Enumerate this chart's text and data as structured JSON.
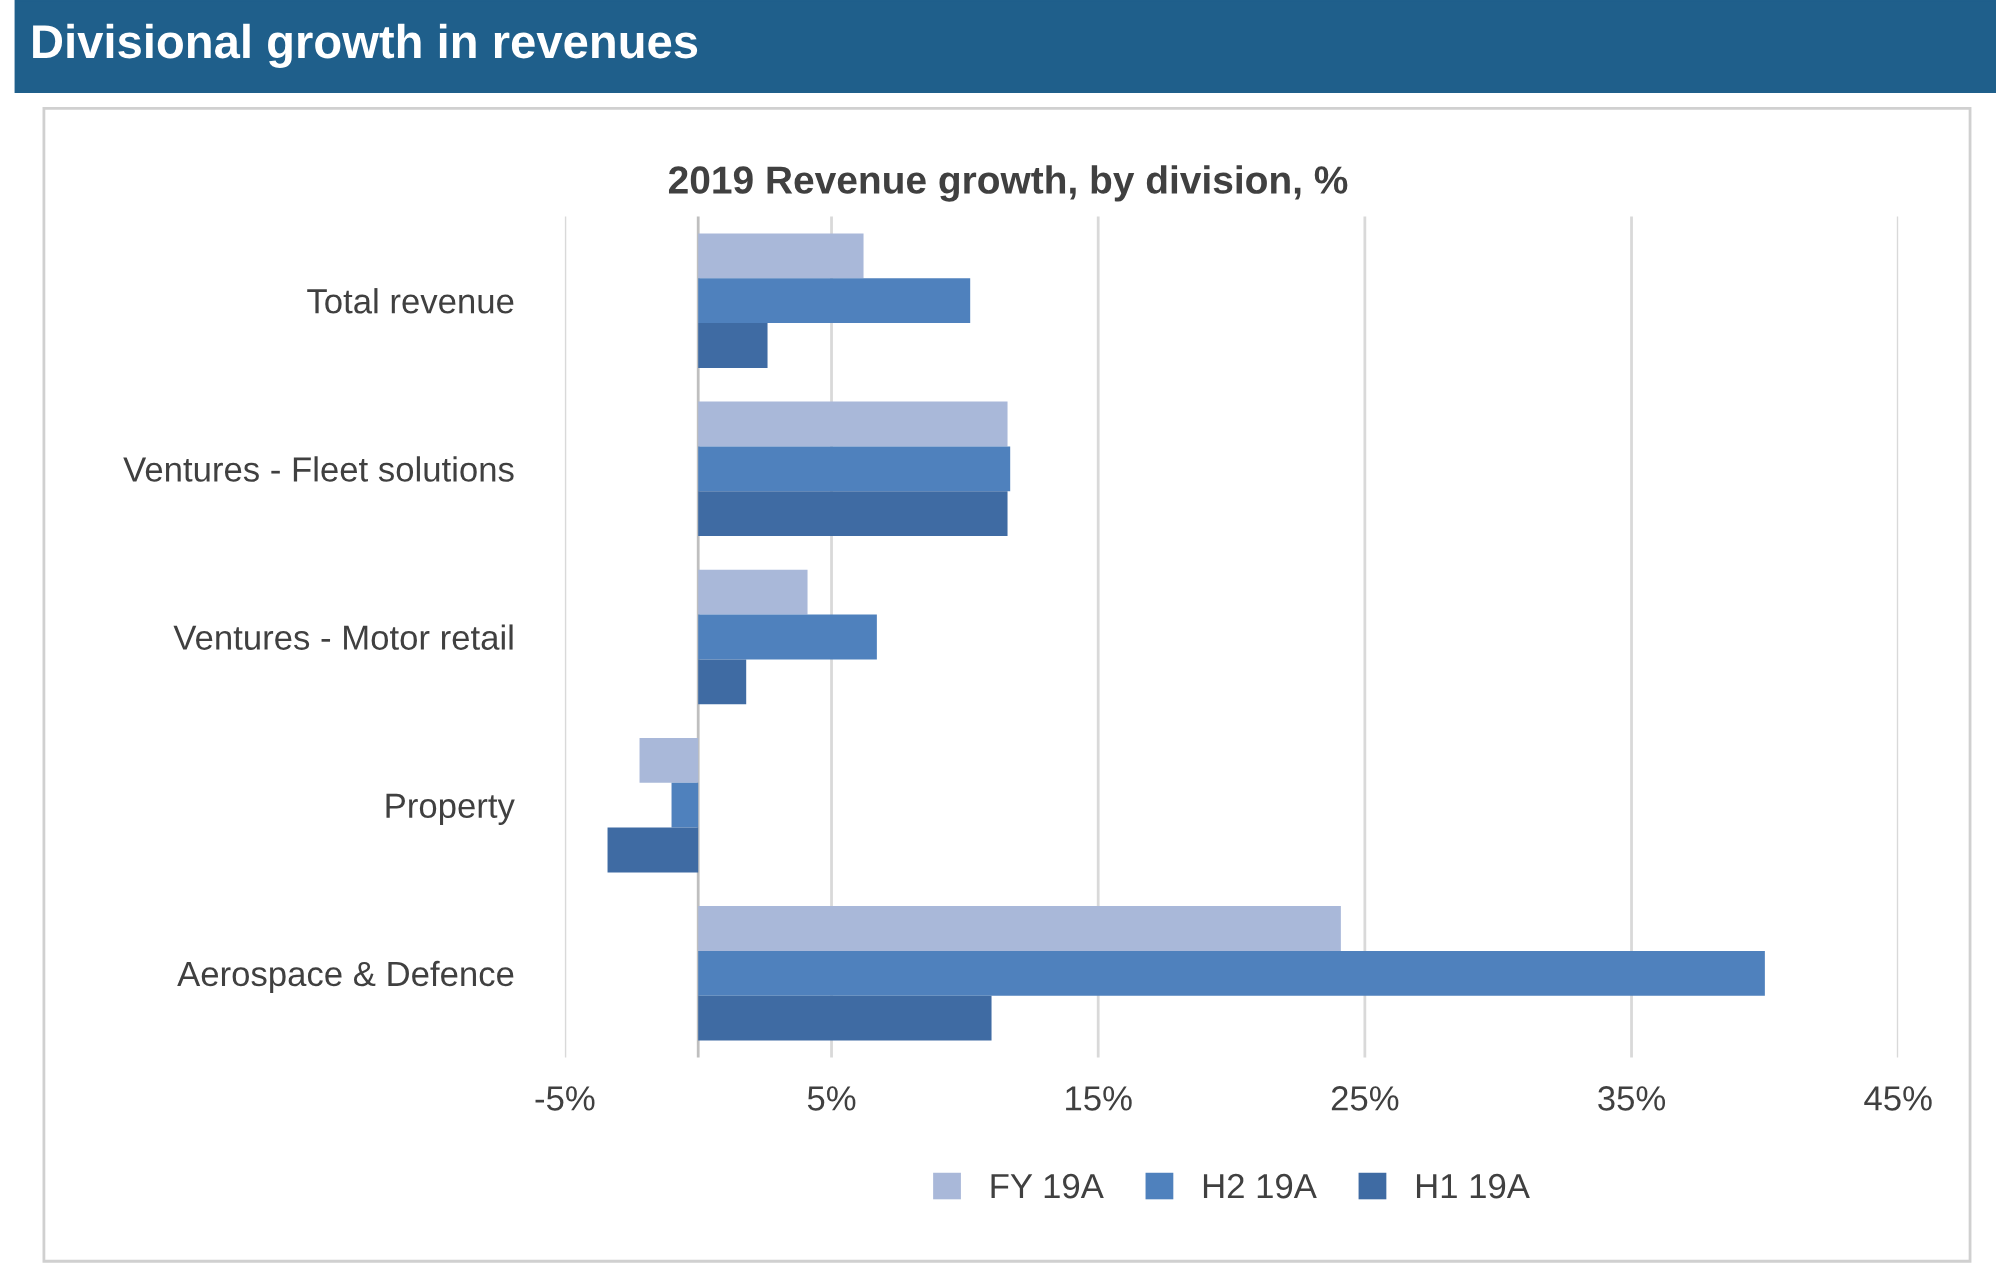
{
  "chart_data": {
    "type": "bar",
    "orientation": "horizontal",
    "title": "Divisional growth in revenues",
    "subtitle": "2019 Revenue growth, by division, %",
    "categories": [
      "Total revenue",
      "Ventures - Fleet solutions",
      "Ventures - Motor retail",
      "Property",
      "Aerospace & Defence"
    ],
    "series": [
      {
        "name": "FY 19A",
        "color": "#a9b8d9",
        "values": [
          6.2,
          11.6,
          4.1,
          -2.2,
          24.1
        ]
      },
      {
        "name": "H2 19A",
        "color": "#4f81bd",
        "values": [
          10.2,
          11.7,
          6.7,
          -1.0,
          40.0
        ]
      },
      {
        "name": "H1 19A",
        "color": "#3f6ba3",
        "values": [
          2.6,
          11.6,
          1.8,
          -3.4,
          11.0
        ]
      }
    ],
    "xlim": [
      -5,
      45
    ],
    "xticks": [
      {
        "value": -5,
        "label": "-5%"
      },
      {
        "value": 5,
        "label": "5%"
      },
      {
        "value": 15,
        "label": "15%"
      },
      {
        "value": 25,
        "label": "25%"
      },
      {
        "value": 35,
        "label": "35%"
      },
      {
        "value": 45,
        "label": "45%"
      }
    ],
    "grid": "x",
    "legend": "bottom"
  }
}
